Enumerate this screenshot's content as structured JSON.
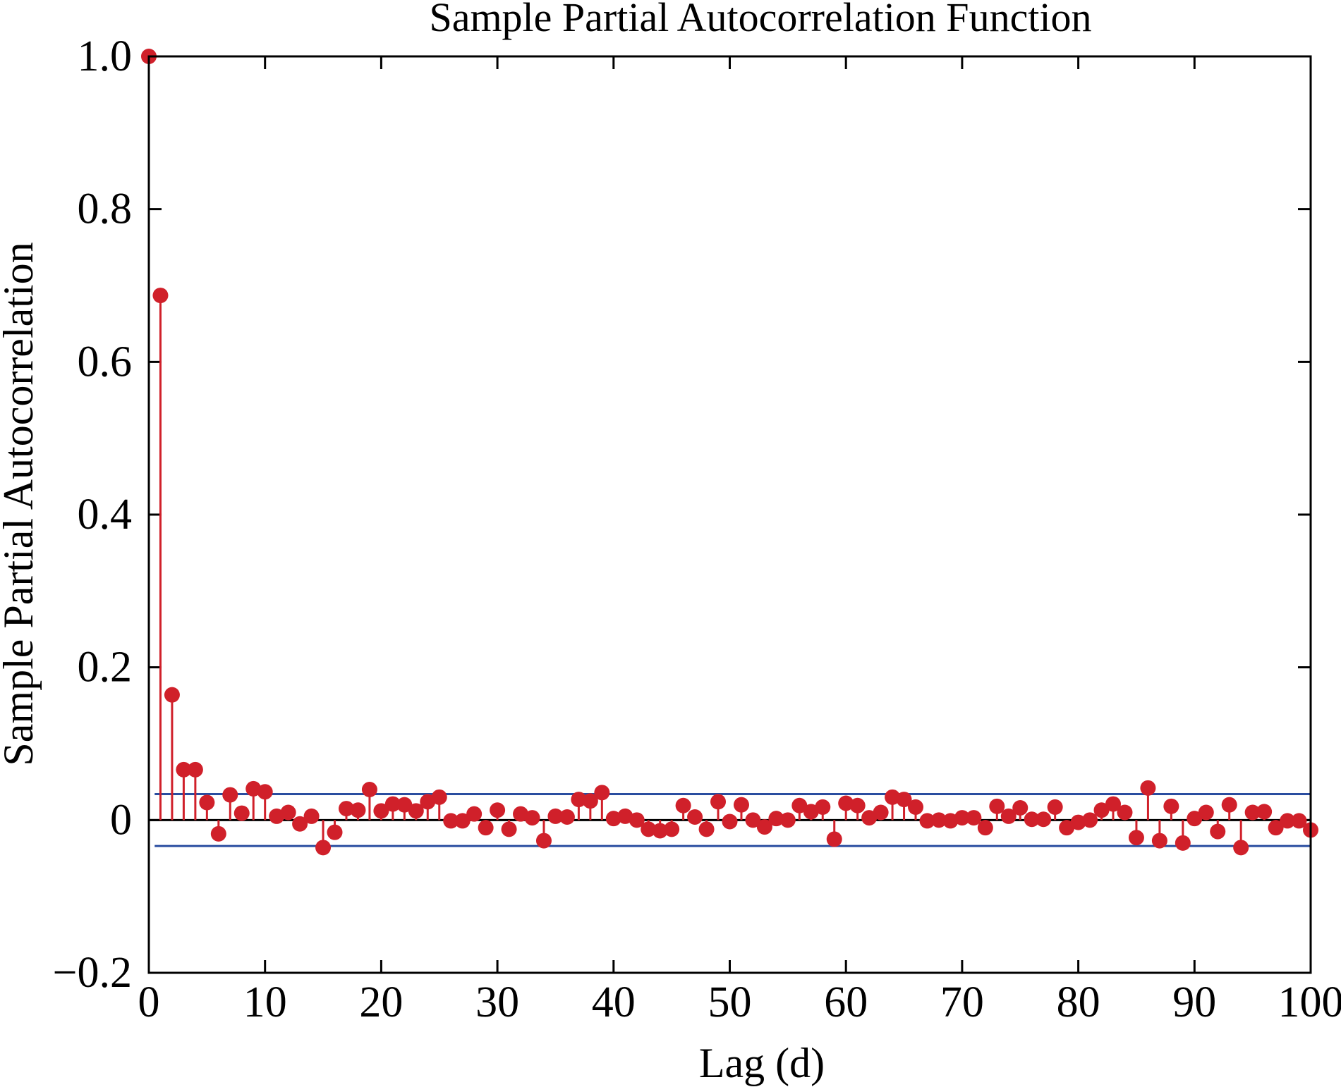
{
  "chart_data": {
    "type": "stem",
    "title": "Sample Partial Autocorrelation Function",
    "xlabel": "Lag (d)",
    "ylabel": "Sample Partial Autocorrelation",
    "xlim": [
      0,
      100
    ],
    "ylim": [
      -0.2,
      1.0
    ],
    "xticks": [
      0,
      10,
      20,
      30,
      40,
      50,
      60,
      70,
      80,
      90,
      100
    ],
    "xtick_labels": [
      "0",
      "10",
      "20",
      "30",
      "40",
      "50",
      "60",
      "70",
      "80",
      "90",
      "100"
    ],
    "yticks": [
      -0.2,
      0,
      0.2,
      0.4,
      0.6,
      0.8,
      1.0
    ],
    "ytick_labels": [
      "−0.2",
      "0",
      "0.2",
      "0.4",
      "0.6",
      "0.8",
      "1.0"
    ],
    "confidence_bounds": [
      0.034,
      -0.034
    ],
    "colors": {
      "stem": "#d0202a",
      "bounds": "#2a4da0",
      "axis": "#000000"
    },
    "lags": [
      0,
      1,
      2,
      3,
      4,
      5,
      6,
      7,
      8,
      9,
      10,
      11,
      12,
      13,
      14,
      15,
      16,
      17,
      18,
      19,
      20,
      21,
      22,
      23,
      24,
      25,
      26,
      27,
      28,
      29,
      30,
      31,
      32,
      33,
      34,
      35,
      36,
      37,
      38,
      39,
      40,
      41,
      42,
      43,
      44,
      45,
      46,
      47,
      48,
      49,
      50,
      51,
      52,
      53,
      54,
      55,
      56,
      57,
      58,
      59,
      60,
      61,
      62,
      63,
      64,
      65,
      66,
      67,
      68,
      69,
      70,
      71,
      72,
      73,
      74,
      75,
      76,
      77,
      78,
      79,
      80,
      81,
      82,
      83,
      84,
      85,
      86,
      87,
      88,
      89,
      90,
      91,
      92,
      93,
      94,
      95,
      96,
      97,
      98,
      99,
      100
    ],
    "values": [
      1.0,
      0.687,
      0.164,
      0.066,
      0.066,
      0.023,
      -0.018,
      0.033,
      0.009,
      0.041,
      0.037,
      0.005,
      0.01,
      -0.005,
      0.005,
      -0.036,
      -0.016,
      0.015,
      0.013,
      0.04,
      0.012,
      0.021,
      0.02,
      0.012,
      0.024,
      0.03,
      -0.001,
      -0.001,
      0.008,
      -0.01,
      0.013,
      -0.012,
      0.008,
      0.003,
      -0.027,
      0.005,
      0.004,
      0.027,
      0.025,
      0.036,
      0.002,
      0.005,
      0.0,
      -0.012,
      -0.014,
      -0.012,
      0.019,
      0.004,
      -0.012,
      0.024,
      -0.002,
      0.02,
      0.0,
      -0.009,
      0.002,
      0.0,
      0.019,
      0.011,
      0.017,
      -0.025,
      0.022,
      0.019,
      0.003,
      0.01,
      0.03,
      0.027,
      0.017,
      -0.001,
      0.0,
      -0.001,
      0.003,
      0.003,
      -0.01,
      0.018,
      0.005,
      0.016,
      0.001,
      0.001,
      0.017,
      -0.01,
      -0.003,
      0.0,
      0.013,
      0.021,
      0.01,
      -0.023,
      0.042,
      -0.027,
      0.018,
      -0.03,
      0.002,
      0.01,
      -0.015,
      0.02,
      -0.036,
      0.01,
      0.011,
      -0.01,
      -0.001,
      -0.001,
      -0.013
    ]
  }
}
